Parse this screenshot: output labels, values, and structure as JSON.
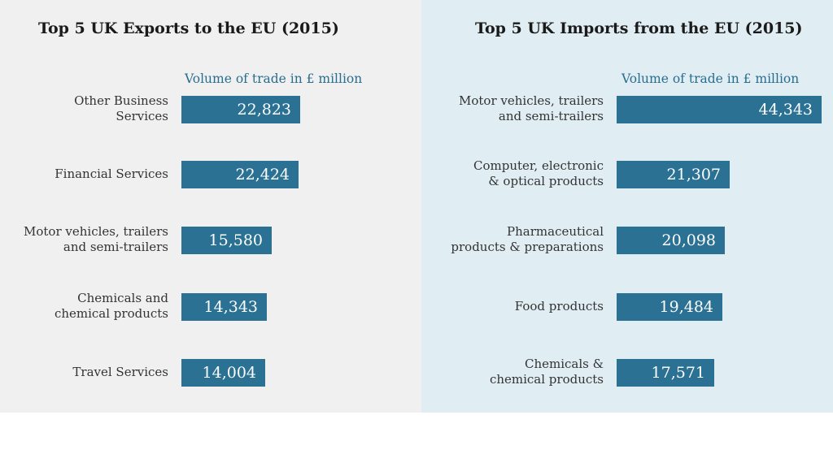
{
  "chart_data": [
    {
      "type": "bar",
      "orientation": "horizontal",
      "title": "Top 5 UK Exports to the EU (2015)",
      "subtitle": "Volume of trade in £ million",
      "categories": [
        "Other Business\nServices",
        "Financial Services",
        "Motor vehicles, trailers\nand semi-trailers",
        "Chemicals and\nchemical products",
        "Travel Services"
      ],
      "values": [
        22823,
        22424,
        15580,
        14343,
        14004
      ],
      "value_labels": [
        "22,823",
        "22,424",
        "15,580",
        "14,343",
        "14,004"
      ],
      "bar_color": "#2a7193",
      "background": "#f0f0f0"
    },
    {
      "type": "bar",
      "orientation": "horizontal",
      "title": "Top 5 UK Imports from the EU (2015)",
      "subtitle": "Volume of trade in £ million",
      "categories": [
        "Motor vehicles, trailers\nand semi-trailers",
        "Computer, electronic\n& optical products",
        "Pharmaceutical\nproducts & preparations",
        "Food products",
        "Chemicals &\nchemical products"
      ],
      "values": [
        44343,
        21307,
        20098,
        19484,
        17571
      ],
      "value_labels": [
        "44,343",
        "21,307",
        "20,098",
        "19,484",
        "17,571"
      ],
      "bar_color": "#2a7193",
      "background": "#e0edf3"
    }
  ]
}
